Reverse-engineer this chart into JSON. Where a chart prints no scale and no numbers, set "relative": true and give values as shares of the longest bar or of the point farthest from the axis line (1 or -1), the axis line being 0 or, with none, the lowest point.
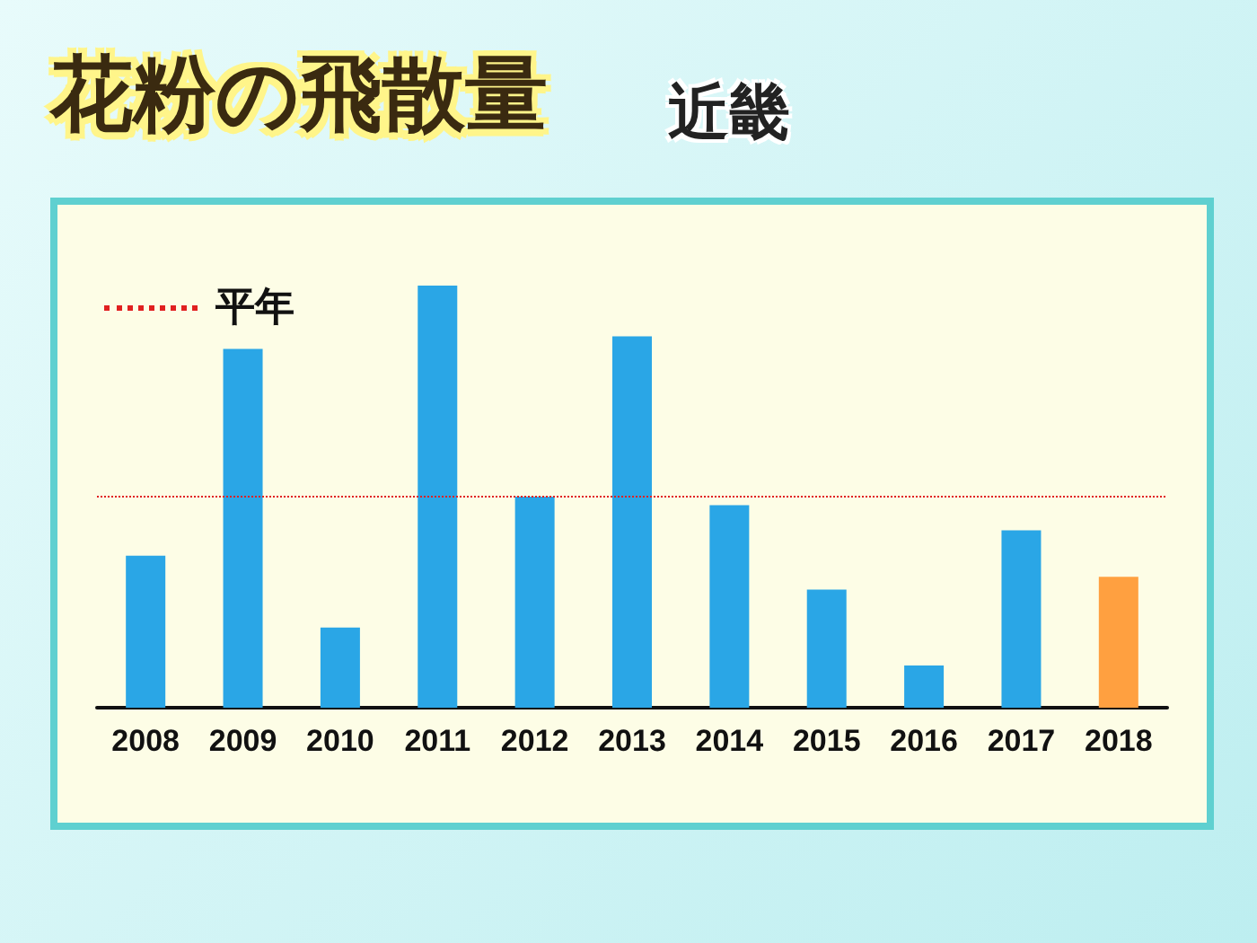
{
  "chart_data": {
    "type": "bar",
    "title": "花粉の飛散量",
    "subtitle": "近畿",
    "relative": true,
    "categories": [
      "2008",
      "2009",
      "2010",
      "2011",
      "2012",
      "2013",
      "2014",
      "2015",
      "2016",
      "2017",
      "2018"
    ],
    "values": [
      0.36,
      0.85,
      0.19,
      1,
      0.5,
      0.88,
      0.48,
      0.28,
      0.1,
      0.42,
      0.31
    ],
    "colors": [
      "#2aa6e6",
      "#2aa6e6",
      "#2aa6e6",
      "#2aa6e6",
      "#2aa6e6",
      "#2aa6e6",
      "#2aa6e6",
      "#2aa6e6",
      "#2aa6e6",
      "#2aa6e6",
      "#ffa040"
    ],
    "ref_lines": [
      {
        "axis": "y",
        "value": 0.5,
        "label": "平年",
        "color": "#e02020",
        "line_style": "dotted"
      }
    ],
    "legend": "top left"
  }
}
